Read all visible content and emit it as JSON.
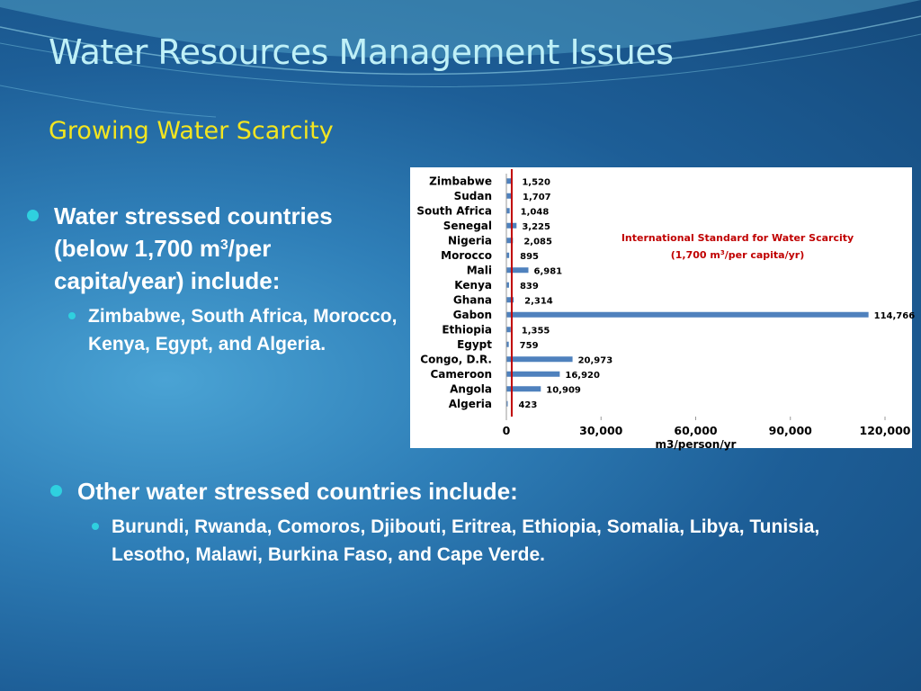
{
  "slide": {
    "title": "Water Resources Management Issues",
    "subtitle": "Growing Water Scarcity"
  },
  "bullets": [
    {
      "text_before": "Water stressed countries (below 1,700 m",
      "sup": "3",
      "text_after": "/per capita/year) include:",
      "sub": "Zimbabwe, South Africa, Morocco, Kenya, Egypt, and Algeria."
    },
    {
      "text": "Other water stressed countries include:",
      "sub": "Burundi, Rwanda, Comoros, Djibouti, Eritrea, Ethiopia, Somalia, Libya, Tunisia, Lesotho, Malawi, Burkina Faso, and Cape Verde."
    }
  ],
  "chart_data": {
    "type": "bar",
    "orientation": "horizontal",
    "categories": [
      "Zimbabwe",
      "Sudan",
      "South Africa",
      "Senegal",
      "Nigeria",
      "Morocco",
      "Mali",
      "Kenya",
      "Ghana",
      "Gabon",
      "Ethiopia",
      "Egypt",
      "Congo, D.R.",
      "Cameroon",
      "Angola",
      "Algeria"
    ],
    "values": [
      1520,
      1707,
      1048,
      3225,
      2085,
      895,
      6981,
      839,
      2314,
      114766,
      1355,
      759,
      20973,
      16920,
      10909,
      423
    ],
    "value_labels": [
      "1,520",
      "1,707",
      "1,048",
      "3,225",
      "2,085",
      "895",
      "6,981",
      "839",
      "2,314",
      "114,766",
      "1,355",
      "759",
      "20,973",
      "16,920",
      "10,909",
      "423"
    ],
    "xlabel": "m3/person/yr",
    "xlim": [
      0,
      120000
    ],
    "xticks": [
      0,
      30000,
      60000,
      90000,
      120000
    ],
    "xtick_labels": [
      "0",
      "30,000",
      "60,000",
      "90,000",
      "120,000"
    ],
    "bar_color": "#4f81bd",
    "threshold": {
      "value": 1700,
      "color": "#c00000",
      "label_line1": "International Standard for  Water  Scarcity",
      "label_line2_before": "(1,700 m",
      "label_line2_sup": "3",
      "label_line2_after": "/per capita/yr)"
    }
  }
}
